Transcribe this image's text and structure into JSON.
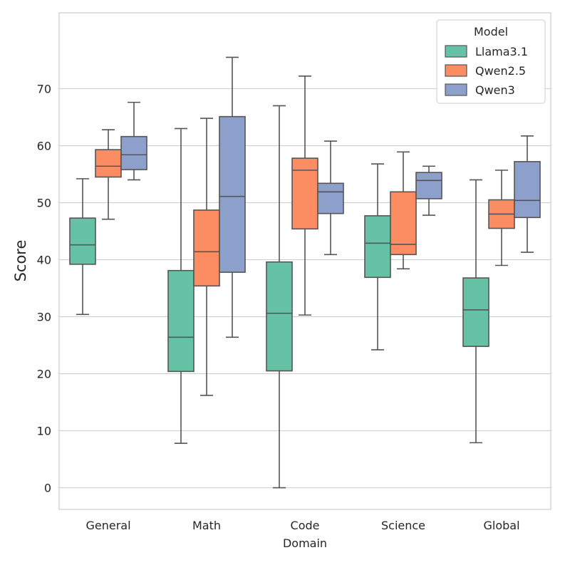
{
  "chart_data": {
    "type": "boxplot",
    "xlabel": "Domain",
    "ylabel": "Score",
    "ylim": [
      -3.8,
      83.3
    ],
    "yticks": [
      0,
      10,
      20,
      30,
      40,
      50,
      60,
      70
    ],
    "categories": [
      "General",
      "Math",
      "Code",
      "Science",
      "Global"
    ],
    "legend": {
      "title": "Model",
      "position": "top-right"
    },
    "grid": "horizontal",
    "series": [
      {
        "name": "Llama3.1",
        "color": "#66c2a5",
        "boxes": [
          {
            "min": 30.4,
            "q1": 39.2,
            "median": 42.6,
            "q3": 47.3,
            "max": 54.2
          },
          {
            "min": 7.8,
            "q1": 20.4,
            "median": 26.4,
            "q3": 38.1,
            "max": 63.0
          },
          {
            "min": 0.0,
            "q1": 20.5,
            "median": 30.6,
            "q3": 39.6,
            "max": 67.0
          },
          {
            "min": 24.2,
            "q1": 36.9,
            "median": 42.9,
            "q3": 47.7,
            "max": 56.8
          },
          {
            "min": 7.9,
            "q1": 24.8,
            "median": 31.2,
            "q3": 36.8,
            "max": 54.0
          }
        ]
      },
      {
        "name": "Qwen2.5",
        "color": "#fc8d62",
        "boxes": [
          {
            "min": 47.1,
            "q1": 54.5,
            "median": 56.4,
            "q3": 59.3,
            "max": 62.8
          },
          {
            "min": 16.2,
            "q1": 35.4,
            "median": 41.4,
            "q3": 48.7,
            "max": 64.8
          },
          {
            "min": 30.3,
            "q1": 45.4,
            "median": 55.7,
            "q3": 57.8,
            "max": 72.2
          },
          {
            "min": 38.4,
            "q1": 40.9,
            "median": 42.7,
            "q3": 51.9,
            "max": 58.9
          },
          {
            "min": 39.0,
            "q1": 45.5,
            "median": 48.0,
            "q3": 50.5,
            "max": 55.7
          }
        ]
      },
      {
        "name": "Qwen3",
        "color": "#8da0cb",
        "boxes": [
          {
            "min": 54.0,
            "q1": 55.8,
            "median": 58.4,
            "q3": 61.6,
            "max": 67.6
          },
          {
            "min": 26.4,
            "q1": 37.8,
            "median": 51.1,
            "q3": 65.1,
            "max": 75.5
          },
          {
            "min": 40.9,
            "q1": 48.1,
            "median": 51.9,
            "q3": 53.4,
            "max": 60.8
          },
          {
            "min": 47.8,
            "q1": 50.7,
            "median": 53.9,
            "q3": 55.3,
            "max": 56.4
          },
          {
            "min": 41.3,
            "q1": 47.4,
            "median": 50.4,
            "q3": 57.2,
            "max": 61.7
          }
        ]
      }
    ]
  }
}
